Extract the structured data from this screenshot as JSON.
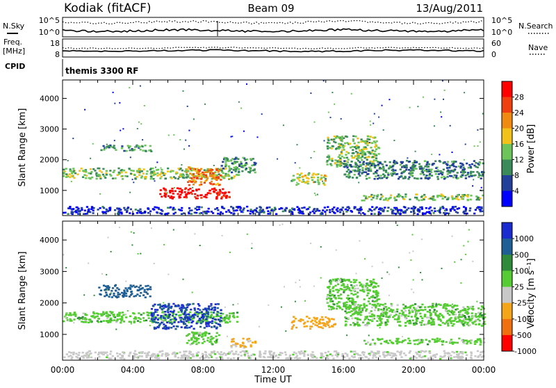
{
  "header": {
    "station": "Kodiak (fitACF)",
    "beam": "Beam 09",
    "date": "13/Aug/2011"
  },
  "noise_panel": {
    "left_label": "N.Sky",
    "right_label": "N.Search",
    "ticks_left": [
      "10^5",
      "10^0"
    ],
    "ticks_right": [
      "10^5",
      "10^0"
    ]
  },
  "freq_panel": {
    "left_label": "Freq.",
    "left_unit": "[MHz]",
    "right_label": "Nave",
    "ticks_left": [
      "18",
      "8"
    ],
    "ticks_right": [
      "60",
      "0"
    ]
  },
  "cpid_panel": {
    "label": "CPID",
    "text": "themis 3300 RF"
  },
  "colors": {
    "power_scale": [
      "#0000ff",
      "#22409a",
      "#3a8a5a",
      "#6cc45a",
      "#f2c21a",
      "#f08a10",
      "#f04010",
      "#ff0000"
    ],
    "velocity_scale": [
      "#1a2ccf",
      "#1f5f95",
      "#2f8a3a",
      "#55cc33",
      "#c8c8c8",
      "#f5a51a",
      "#f07010",
      "#ff0000"
    ]
  },
  "chart_data": [
    {
      "type": "heatmap",
      "name": "power",
      "xlabel": "",
      "ylabel": "Slant Range [km]",
      "colorbar_label": "Power [dB]",
      "colorbar_ticks": [
        "28",
        "24",
        "20",
        "16",
        "12",
        "8",
        "4"
      ],
      "colorbar_values": [
        28,
        24,
        20,
        16,
        12,
        8,
        4
      ],
      "xlim": [
        0,
        24
      ],
      "ylim": [
        180,
        4600
      ],
      "y_ticks": [
        1000,
        2000,
        3000,
        4000
      ],
      "y_tick_labels": [
        "1000",
        "2000",
        "3000",
        "4000"
      ],
      "features": [
        {
          "t": [
            0,
            10
          ],
          "r": [
            1400,
            1750
          ],
          "level": 14
        },
        {
          "t": [
            2,
            5
          ],
          "r": [
            2300,
            2500
          ],
          "level": 12
        },
        {
          "t": [
            5.5,
            9.5
          ],
          "r": [
            750,
            1100
          ],
          "level": 28
        },
        {
          "t": [
            7,
            9
          ],
          "r": [
            1200,
            1800
          ],
          "level": 22
        },
        {
          "t": [
            9,
            11
          ],
          "r": [
            1600,
            2100
          ],
          "level": 12
        },
        {
          "t": [
            13,
            15
          ],
          "r": [
            1200,
            1600
          ],
          "level": 16
        },
        {
          "t": [
            15,
            18
          ],
          "r": [
            1800,
            2800
          ],
          "level": 14
        },
        {
          "t": [
            16,
            24
          ],
          "r": [
            1400,
            2000
          ],
          "level": 10
        },
        {
          "t": [
            17,
            24
          ],
          "r": [
            700,
            900
          ],
          "level": 14
        },
        {
          "t": [
            0,
            24
          ],
          "r": [
            250,
            500
          ],
          "level": 6
        }
      ]
    },
    {
      "type": "heatmap",
      "name": "velocity",
      "xlabel": "Time UT",
      "ylabel": "Slant Range [km]",
      "colorbar_label": "Velocity [m s⁻¹]",
      "colorbar_ticks": [
        "1000",
        "500",
        "100",
        "25",
        "-25",
        "-100",
        "-500",
        "-1000"
      ],
      "colorbar_values": [
        1000,
        500,
        100,
        25,
        -25,
        -100,
        -500,
        -1000
      ],
      "xlim": [
        0,
        24
      ],
      "ylim": [
        180,
        4600
      ],
      "x_ticks": [
        0,
        4,
        8,
        12,
        16,
        20,
        24
      ],
      "x_tick_labels": [
        "00:00",
        "04:00",
        "08:00",
        "12:00",
        "16:00",
        "20:00",
        "00:00"
      ],
      "y_ticks": [
        1000,
        2000,
        3000,
        4000
      ],
      "y_tick_labels": [
        "1000",
        "2000",
        "3000",
        "4000"
      ],
      "features": [
        {
          "t": [
            0,
            10
          ],
          "r": [
            1400,
            1750
          ],
          "level": 0
        },
        {
          "t": [
            2,
            5
          ],
          "r": [
            2200,
            2600
          ],
          "level": 300
        },
        {
          "t": [
            5,
            9
          ],
          "r": [
            1200,
            2000
          ],
          "level": 500
        },
        {
          "t": [
            7,
            9
          ],
          "r": [
            700,
            1100
          ],
          "level": 0
        },
        {
          "t": [
            9.5,
            11
          ],
          "r": [
            600,
            900
          ],
          "level": -100
        },
        {
          "t": [
            13,
            15.5
          ],
          "r": [
            1200,
            1600
          ],
          "level": -300
        },
        {
          "t": [
            15,
            18
          ],
          "r": [
            1800,
            2800
          ],
          "level": 0
        },
        {
          "t": [
            16,
            24
          ],
          "r": [
            1300,
            2000
          ],
          "level": 0
        },
        {
          "t": [
            17,
            24
          ],
          "r": [
            700,
            900
          ],
          "level": 0
        },
        {
          "t": [
            0,
            24
          ],
          "r": [
            250,
            500
          ],
          "level": -50
        }
      ]
    }
  ]
}
